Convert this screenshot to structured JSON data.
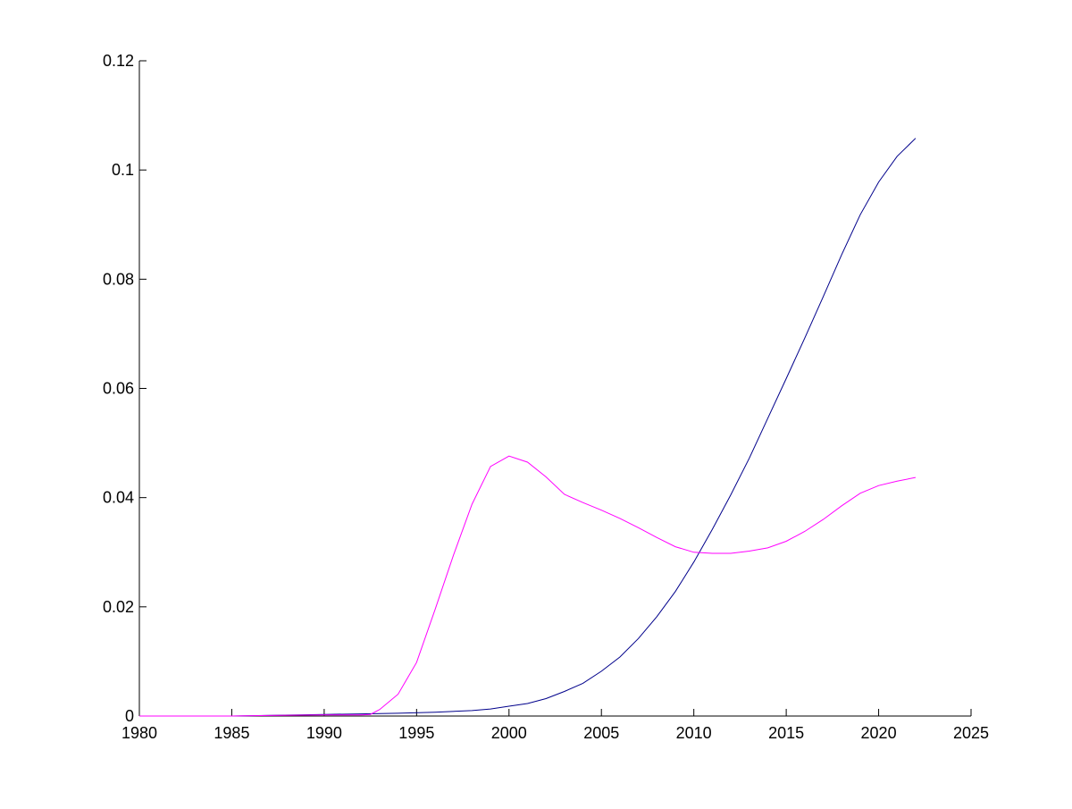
{
  "chart_data": {
    "type": "line",
    "title": "",
    "xlabel": "",
    "ylabel": "",
    "xlim": [
      1980,
      2025
    ],
    "ylim": [
      0,
      0.12
    ],
    "xticks": [
      1980,
      1985,
      1990,
      1995,
      2000,
      2005,
      2010,
      2015,
      2020,
      2025
    ],
    "yticks": [
      0,
      0.02,
      0.04,
      0.06,
      0.08,
      0.1,
      0.12
    ],
    "xtick_labels": [
      "1980",
      "1985",
      "1990",
      "1995",
      "2000",
      "2005",
      "2010",
      "2015",
      "2020",
      "2025"
    ],
    "ytick_labels": [
      "0",
      "0.02",
      "0.04",
      "0.06",
      "0.08",
      "0.1",
      "0.12"
    ],
    "grid": false,
    "legend": false,
    "series": [
      {
        "color": "#00008b",
        "x": [
          1980,
          1985,
          1990,
          1992,
          1994,
          1996,
          1998,
          1999,
          2000,
          2001,
          2002,
          2003,
          2004,
          2005,
          2006,
          2007,
          2008,
          2009,
          2010,
          2011,
          2012,
          2013,
          2014,
          2015,
          2016,
          2017,
          2018,
          2019,
          2020,
          2021,
          2022
        ],
        "values": [
          0,
          0,
          0.0003,
          0.0004,
          0.0005,
          0.0007,
          0.001,
          0.0013,
          0.0018,
          0.0023,
          0.0032,
          0.0045,
          0.006,
          0.0082,
          0.0108,
          0.0142,
          0.0182,
          0.0228,
          0.0282,
          0.0342,
          0.0405,
          0.0472,
          0.0545,
          0.0618,
          0.0692,
          0.0768,
          0.0845,
          0.0918,
          0.0978,
          0.1025,
          0.1058
        ]
      },
      {
        "color": "#ff00ff",
        "x": [
          1980,
          1985,
          1987,
          1990,
          1992,
          1992.5,
          1993,
          1994,
          1995,
          1996,
          1997,
          1998,
          1999,
          2000,
          2001,
          2002,
          2003,
          2004,
          2005,
          2006,
          2007,
          2008,
          2009,
          2010,
          2011,
          2012,
          2013,
          2014,
          2015,
          2016,
          2017,
          2018,
          2019,
          2020,
          2021,
          2022
        ],
        "values": [
          0,
          0,
          0.0001,
          0.0002,
          0.0002,
          0.0003,
          0.0012,
          0.004,
          0.0098,
          0.0195,
          0.0295,
          0.0388,
          0.0457,
          0.0476,
          0.0465,
          0.0438,
          0.0406,
          0.0391,
          0.0377,
          0.0362,
          0.0345,
          0.0327,
          0.031,
          0.03,
          0.0298,
          0.0298,
          0.0302,
          0.0308,
          0.032,
          0.0338,
          0.036,
          0.0385,
          0.0408,
          0.0422,
          0.043,
          0.0437
        ]
      }
    ]
  }
}
